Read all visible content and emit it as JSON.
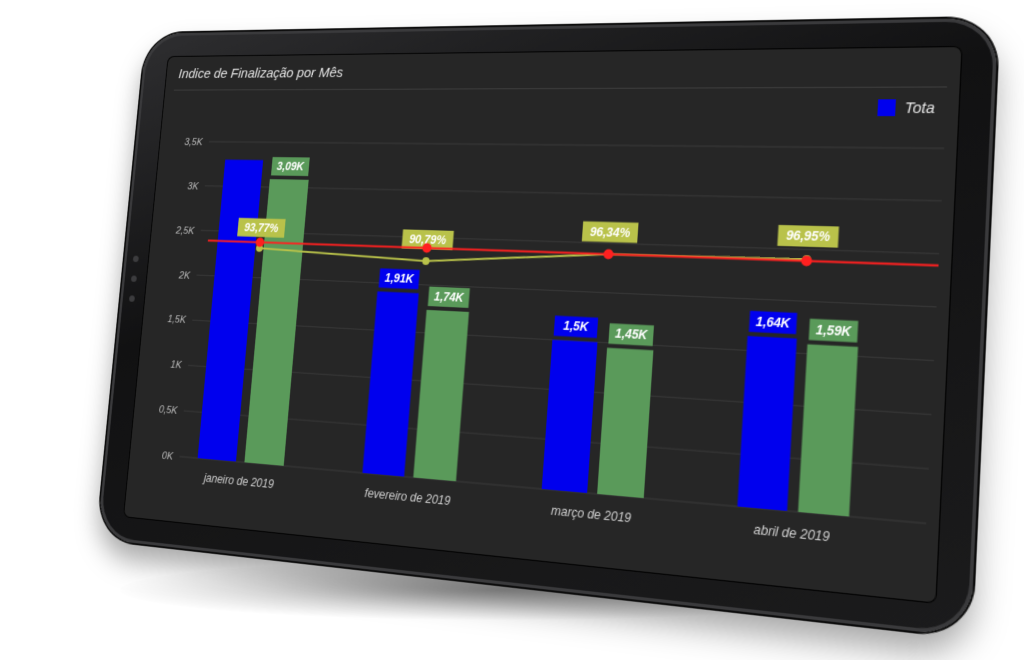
{
  "chart": {
    "title": "Indice de Finalização por Mês",
    "legend_label": "Tota"
  },
  "chart_data": {
    "type": "bar",
    "title": "Indice de Finalização por Mês",
    "categories": [
      "janeiro de 2019",
      "fevereiro de 2019",
      "março de 2019",
      "abril de 2019"
    ],
    "series": [
      {
        "name": "Tota",
        "kind": "bar",
        "color": "#0000ee",
        "values": [
          3300,
          1910,
          1500,
          1640
        ],
        "labels": [
          "",
          "1,91K",
          "1,5K",
          "1,64K"
        ]
      },
      {
        "kind": "bar",
        "color": "#5a9a5a",
        "values": [
          3090,
          1740,
          1450,
          1590
        ],
        "labels": [
          "3,09K",
          "1,74K",
          "1,45K",
          "1,59K"
        ]
      },
      {
        "kind": "line",
        "color": "#b9c24a",
        "values": [
          93.77,
          90.79,
          96.34,
          96.95
        ],
        "labels": [
          "93,77%",
          "90,79%",
          "96,34%",
          "96,95%"
        ]
      },
      {
        "kind": "line",
        "color": "#ff2020",
        "values": [
          96.34,
          96.34,
          96.34,
          96.34
        ]
      }
    ],
    "y_ticks": [
      "0K",
      "0,5K",
      "1K",
      "1,5K",
      "2K",
      "2,5K",
      "3K",
      "3,5K"
    ],
    "ylim": [
      0,
      3500
    ],
    "grid": true,
    "legend_position": "top-right"
  }
}
